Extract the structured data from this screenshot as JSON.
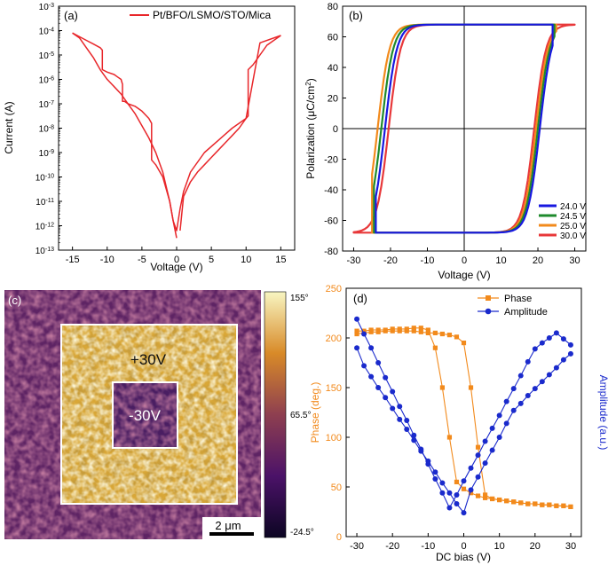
{
  "chart_data": [
    {
      "panel": "a",
      "type": "line",
      "panel_label": "(a)",
      "xlabel": "Voltage (V)",
      "ylabel": "Current (A)",
      "xlim": [
        -17,
        17
      ],
      "ylim_exp": [
        -13,
        -3
      ],
      "y_scale": "log",
      "x_ticks": [
        -15,
        -10,
        -5,
        0,
        5,
        10,
        15
      ],
      "y_tick_exponents": [
        -13,
        -12,
        -11,
        -10,
        -9,
        -8,
        -7,
        -6,
        -5,
        -4,
        -3
      ],
      "legend": [
        "Pt/BFO/LSMO/STO/Mica"
      ],
      "color": "#e8262a",
      "series": [
        {
          "name": "Pt/BFO/LSMO/STO/Mica",
          "x": [
            -15,
            -14,
            -13,
            -12,
            -11,
            -10.7,
            -10.7,
            -10,
            -9,
            -8.5,
            -8,
            -7.8,
            -7.8,
            -7.5,
            -7,
            -6,
            -5,
            -4,
            -3.6,
            -3.6,
            -3,
            -2,
            -1.5,
            -1,
            -0.5,
            0
          ],
          "log_y": [
            -4.1,
            -4.25,
            -4.4,
            -4.55,
            -4.7,
            -4.8,
            -5.6,
            -5.7,
            -5.8,
            -5.9,
            -6.0,
            -6.2,
            -6.9,
            -6.9,
            -7.0,
            -7.1,
            -7.3,
            -7.6,
            -7.8,
            -9.3,
            -9.5,
            -10.0,
            -10.5,
            -11.0,
            -11.8,
            -12.5
          ]
        },
        {
          "name": "Pt/BFO/LSMO/STO/Mica",
          "x": [
            0.5,
            1,
            2,
            3,
            4,
            5,
            6,
            7,
            8,
            9,
            10,
            10.3,
            10.3,
            11,
            12,
            13,
            14,
            15
          ],
          "log_y": [
            -12.2,
            -10.8,
            -10.2,
            -9.8,
            -9.5,
            -9.2,
            -8.9,
            -8.6,
            -8.3,
            -8.0,
            -7.6,
            -7.5,
            -5.6,
            -5.4,
            -5.0,
            -4.6,
            -4.4,
            -4.2
          ]
        },
        {
          "name": "Pt/BFO/LSMO/STO/Mica",
          "x": [
            15,
            12,
            10,
            8,
            6,
            4,
            2,
            1,
            0.5,
            0,
            -0.5,
            -1,
            -2,
            -3,
            -4,
            -5,
            -6,
            -7,
            -8,
            -9,
            -10,
            -11,
            -12,
            -13,
            -14,
            -15
          ],
          "log_y": [
            -4.2,
            -4.5,
            -7.6,
            -8.0,
            -8.5,
            -9.0,
            -9.8,
            -10.6,
            -11.3,
            -12.2,
            -11.8,
            -11.0,
            -9.8,
            -9.0,
            -8.4,
            -7.9,
            -7.4,
            -7.0,
            -6.6,
            -6.3,
            -6.0,
            -5.6,
            -5.1,
            -4.7,
            -4.3,
            -4.1
          ]
        }
      ]
    },
    {
      "panel": "b",
      "type": "line",
      "panel_label": "(b)",
      "xlabel": "Voltage (V)",
      "ylabel_parts": [
        "Polarization (μC/cm",
        "2",
        ")"
      ],
      "xlim": [
        -33,
        33
      ],
      "ylim": [
        -80,
        80
      ],
      "x_ticks": [
        -30,
        -20,
        -10,
        0,
        10,
        20,
        30
      ],
      "y_ticks": [
        -80,
        -60,
        -40,
        -20,
        0,
        20,
        40,
        60,
        80
      ],
      "series": [
        {
          "name": "24.0 V",
          "color": "#1818e0",
          "vmax": 24.0,
          "vc_neg": -21.5,
          "vc_pos": 20.5,
          "ps": 68
        },
        {
          "name": "24.5 V",
          "color": "#1e8a2c",
          "vmax": 24.5,
          "vc_neg": -22.5,
          "vc_pos": 20.0,
          "ps": 68
        },
        {
          "name": "25.0 V",
          "color": "#f28a1c",
          "vmax": 25.0,
          "vc_neg": -23.5,
          "vc_pos": 19.5,
          "ps": 68
        },
        {
          "name": "30.0 V",
          "color": "#e8383a",
          "vmax": 30.0,
          "vc_neg": -20.5,
          "vc_pos": 19.0,
          "ps": 68
        }
      ]
    },
    {
      "panel": "c",
      "type": "heatmap",
      "panel_label": "(c)",
      "labels": {
        "outer": "+30V",
        "inner": "-30V"
      },
      "scalebar": "2 μm",
      "colorbar_ticks": [
        "155°",
        "65.5°",
        "-24.5°"
      ]
    },
    {
      "panel": "d",
      "type": "line",
      "panel_label": "(d)",
      "xlabel": "DC bias (V)",
      "ylabel_left": "Phase (deg.)",
      "ylabel_right": "Amplitude (a.u.)",
      "xlim": [
        -33,
        33
      ],
      "ylim": [
        0,
        250
      ],
      "x_ticks": [
        -30,
        -20,
        -10,
        0,
        10,
        20,
        30
      ],
      "y_ticks": [
        0,
        50,
        100,
        150,
        200,
        250
      ],
      "series": [
        {
          "name": "Phase",
          "color": "#f28a1c",
          "marker": "square",
          "x": [
            -30,
            -28,
            -26,
            -24,
            -22,
            -20,
            -18,
            -16,
            -14,
            -12,
            -10,
            -8,
            -6,
            -4,
            -2,
            0,
            2,
            4,
            6,
            8,
            10,
            12,
            14,
            16,
            18,
            20,
            22,
            24,
            26,
            28,
            30
          ],
          "y": [
            204,
            205,
            206,
            206,
            207,
            207,
            207,
            207,
            207,
            206,
            205,
            205,
            204,
            203,
            201,
            195,
            150,
            90,
            42,
            38,
            37,
            36,
            35,
            34,
            33,
            33,
            32,
            32,
            31,
            31,
            30
          ]
        },
        {
          "name": "Phase",
          "color": "#f28a1c",
          "marker": "square",
          "x": [
            30,
            28,
            26,
            24,
            22,
            20,
            18,
            16,
            14,
            12,
            10,
            8,
            6,
            4,
            2,
            0,
            -2,
            -4,
            -6,
            -8,
            -10,
            -12,
            -14,
            -16,
            -18,
            -20,
            -22,
            -24,
            -26,
            -28,
            -30
          ],
          "y": [
            30,
            31,
            31,
            32,
            32,
            33,
            33,
            34,
            35,
            36,
            37,
            38,
            39,
            41,
            44,
            48,
            55,
            100,
            150,
            190,
            208,
            210,
            210,
            209,
            209,
            209,
            208,
            208,
            208,
            207,
            207
          ]
        },
        {
          "name": "Amplitude",
          "color": "#1a2acc",
          "marker": "circle",
          "x": [
            -30,
            -28,
            -26,
            -24,
            -22,
            -20,
            -18,
            -16,
            -14,
            -12,
            -10,
            -8,
            -6,
            -4,
            -2,
            0,
            2,
            4,
            6,
            8,
            10,
            12,
            14,
            16,
            18,
            20,
            22,
            24,
            26,
            28,
            30
          ],
          "y": [
            219,
            204,
            190,
            175,
            160,
            146,
            131,
            117,
            102,
            88,
            73,
            58,
            44,
            29,
            42,
            56,
            69,
            82,
            96,
            109,
            122,
            136,
            149,
            162,
            176,
            189,
            195,
            200,
            205,
            199,
            193
          ]
        },
        {
          "name": "Amplitude",
          "color": "#1a2acc",
          "marker": "circle",
          "x": [
            30,
            28,
            26,
            24,
            22,
            20,
            18,
            16,
            14,
            12,
            10,
            8,
            6,
            4,
            2,
            0,
            -2,
            -4,
            -6,
            -8,
            -10,
            -12,
            -14,
            -16,
            -18,
            -20,
            -22,
            -24,
            -26,
            -28,
            -30
          ],
          "y": [
            184,
            178,
            170,
            163,
            156,
            149,
            142,
            134,
            127,
            114,
            100,
            87,
            74,
            60,
            47,
            24,
            33,
            44,
            54,
            65,
            76,
            86,
            97,
            108,
            118,
            129,
            140,
            150,
            161,
            172,
            190
          ]
        }
      ],
      "legend": [
        "Phase",
        "Amplitude"
      ]
    }
  ]
}
